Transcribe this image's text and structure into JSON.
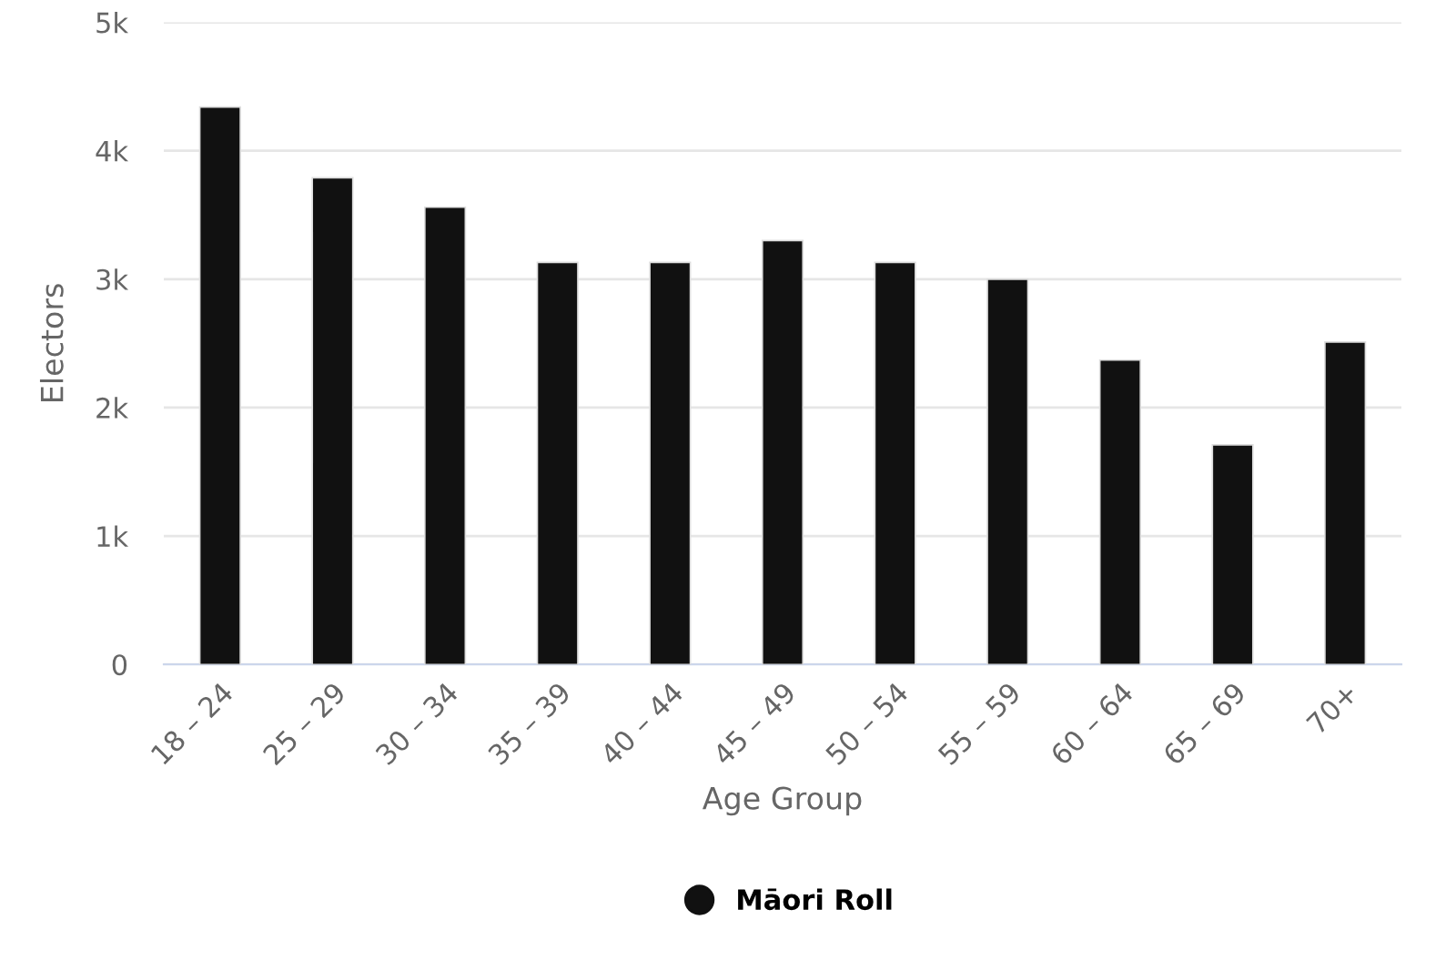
{
  "chart_data": {
    "type": "bar",
    "xlabel": "Age Group",
    "ylabel": "Electors",
    "categories": [
      "18 – 24",
      "25 – 29",
      "30 – 34",
      "35 – 39",
      "40 – 44",
      "45 – 49",
      "50 – 54",
      "55 – 59",
      "60 – 64",
      "65 – 69",
      "70+"
    ],
    "series": [
      {
        "name": "Māori Roll",
        "color": "#111111",
        "values": [
          4340,
          3790,
          3560,
          3130,
          3130,
          3300,
          3130,
          3000,
          2370,
          1710,
          2510
        ]
      }
    ],
    "ylim": [
      0,
      5000
    ],
    "yticks": [
      {
        "value": 0,
        "label": "0"
      },
      {
        "value": 1000,
        "label": "1k"
      },
      {
        "value": 2000,
        "label": "2k"
      },
      {
        "value": 3000,
        "label": "3k"
      },
      {
        "value": 4000,
        "label": "4k"
      },
      {
        "value": 5000,
        "label": "5k"
      }
    ],
    "grid": "y",
    "legend": "bottom"
  }
}
